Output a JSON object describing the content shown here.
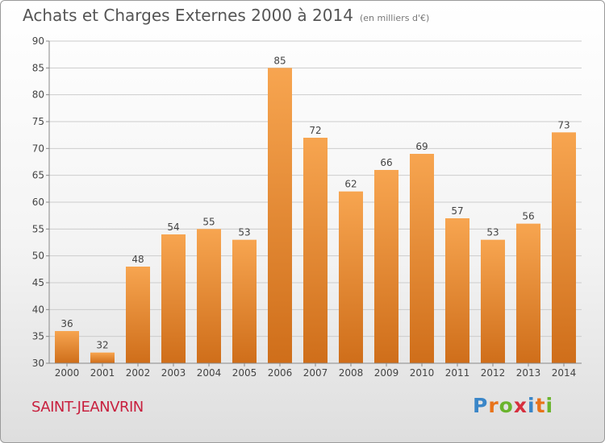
{
  "title": "Achats et Charges Externes 2000 à 2014",
  "subtitle": "(en milliers d'€)",
  "town": "SAINT-JEANVRIN",
  "brand": {
    "text": "Proxiti",
    "letters": [
      {
        "char": "P",
        "color": "#3a86c8"
      },
      {
        "char": "r",
        "color": "#e8731a"
      },
      {
        "char": "o",
        "color": "#6ab42d"
      },
      {
        "char": "x",
        "color": "#d62f3e"
      },
      {
        "char": "i",
        "color": "#3a86c8"
      },
      {
        "char": "t",
        "color": "#e8731a"
      },
      {
        "char": "i",
        "color": "#6ab42d"
      }
    ]
  },
  "colors": {
    "bar_top": "#f7a550",
    "bar_bottom": "#cf6e1a",
    "grid": "#cccccc",
    "axis_text": "#444444",
    "title": "#555555",
    "town": "#c8203e"
  },
  "chart_data": {
    "type": "bar",
    "title": "Achats et Charges Externes 2000 à 2014",
    "subtitle": "(en milliers d'€)",
    "categories": [
      "2000",
      "2001",
      "2002",
      "2003",
      "2004",
      "2005",
      "2006",
      "2007",
      "2008",
      "2009",
      "2010",
      "2011",
      "2012",
      "2013",
      "2014"
    ],
    "values": [
      36,
      32,
      48,
      54,
      55,
      53,
      85,
      72,
      62,
      66,
      69,
      57,
      53,
      56,
      73
    ],
    "ylim": [
      30,
      90
    ],
    "yticks": [
      30,
      35,
      40,
      45,
      50,
      55,
      60,
      65,
      70,
      75,
      80,
      85,
      90
    ],
    "grid": true,
    "data_labels": true
  }
}
